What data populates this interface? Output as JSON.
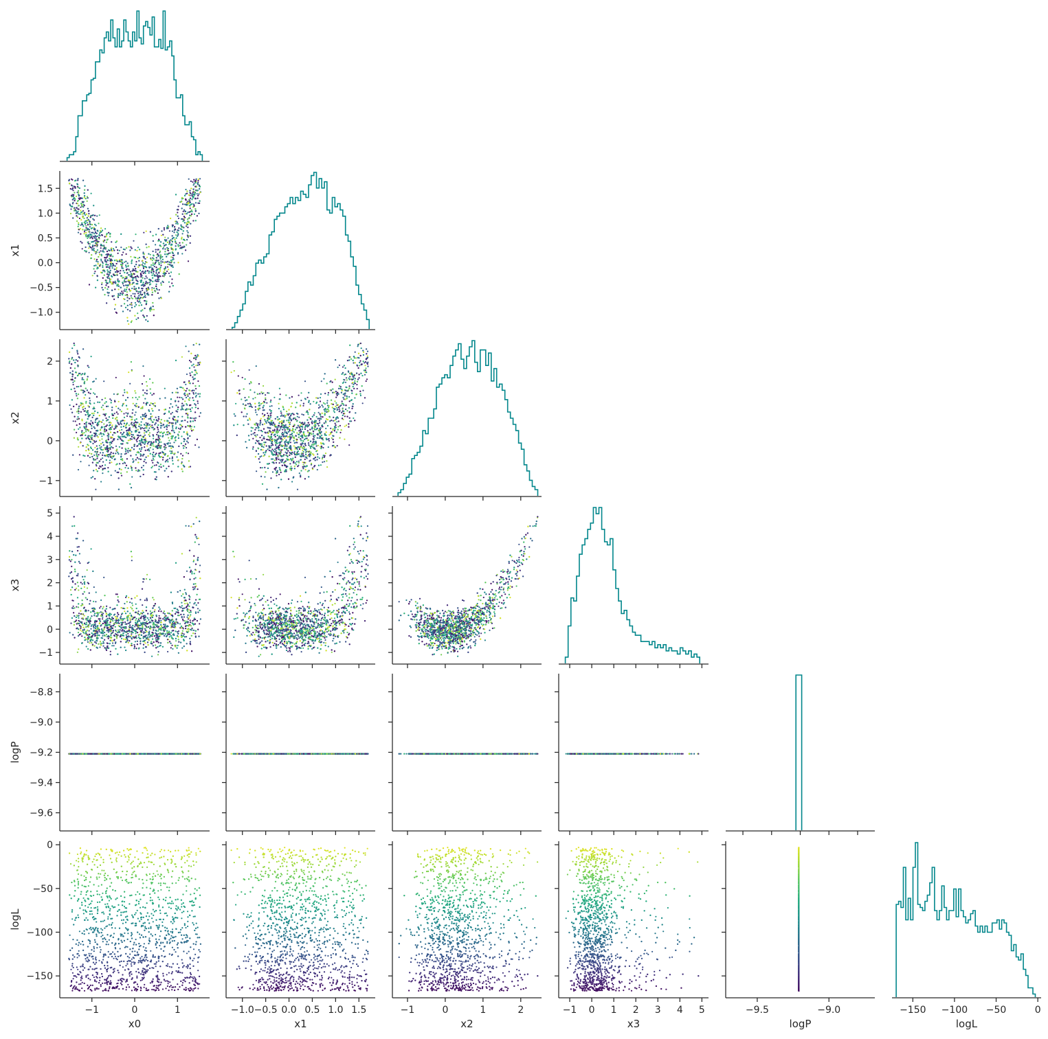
{
  "chart_data": {
    "type": "scatter",
    "layout": "corner-pairplot",
    "variables": [
      "x0",
      "x1",
      "x2",
      "x3",
      "logP",
      "logL"
    ],
    "axis_labels": {
      "x0": "x0",
      "x1": "x1",
      "x2": "x2",
      "x3": "x3",
      "logP": "logP",
      "logL": "logL"
    },
    "ranges": {
      "x0": [
        -1.75,
        1.75
      ],
      "x1": [
        -1.35,
        1.85
      ],
      "x2": [
        -1.4,
        2.55
      ],
      "x3": [
        -1.5,
        5.3
      ],
      "logP": [
        -9.72,
        -8.68
      ],
      "logL": [
        -175,
        4
      ]
    },
    "ticks": {
      "x0": [
        -1,
        0,
        1
      ],
      "x1": [
        -1.0,
        -0.5,
        0.0,
        0.5,
        1.0,
        1.5
      ],
      "x2": [
        -1,
        0,
        1,
        2
      ],
      "x3": [
        -1,
        0,
        1,
        2,
        3,
        4,
        5
      ],
      "logP": [
        -9.6,
        -9.4,
        -9.2,
        -9.0,
        -8.8
      ],
      "logL": [
        -150,
        -100,
        -50,
        0
      ]
    },
    "tick_labels": {
      "x0": [
        "−1",
        "0",
        "1"
      ],
      "x1": [
        "−1.0",
        "−0.5",
        "0.0",
        "0.5",
        "1.0",
        "1.5"
      ],
      "x2": [
        "−1",
        "0",
        "1",
        "2"
      ],
      "x3": [
        "−1",
        "0",
        "1",
        "2",
        "3",
        "4",
        "5"
      ],
      "logP": [
        "−9.6",
        "−9.4",
        "−9.2",
        "−9.0",
        "−8.8"
      ],
      "logL": [
        "−150",
        "−100",
        "−50",
        "0"
      ]
    },
    "bottom_ticks": {
      "logP": [
        -9.5,
        -9.0
      ],
      "logL": [
        -150,
        -100,
        -50,
        0
      ]
    },
    "bottom_tick_labels": {
      "logP": [
        "−9.5",
        "−9.0"
      ],
      "logL": [
        "−150",
        "−100",
        "−50",
        "0"
      ]
    },
    "logP_constant": -9.21,
    "histograms": {
      "x0": {
        "range": [
          -1.58,
          1.58
        ],
        "counts": [
          2,
          4,
          4,
          6,
          16,
          30,
          30,
          40,
          40,
          44,
          45,
          54,
          55,
          66,
          66,
          74,
          72,
          82,
          86,
          80,
          94,
          82,
          76,
          88,
          76,
          80,
          94,
          86,
          80,
          76,
          86,
          80,
          100,
          82,
          78,
          90,
          93,
          89,
          84,
          96,
          76,
          76,
          81,
          75,
          100,
          74,
          76,
          80,
          70,
          54,
          42,
          42,
          44,
          30,
          24,
          24,
          26,
          16,
          14,
          4,
          6,
          4
        ]
      },
      "x1": {
        "range": [
          -1.22,
          1.72
        ],
        "counts": [
          1,
          4,
          8,
          12,
          16,
          24,
          30,
          28,
          34,
          42,
          44,
          42,
          46,
          48,
          60,
          62,
          70,
          72,
          74,
          74,
          78,
          80,
          84,
          80,
          84,
          82,
          88,
          86,
          84,
          92,
          98,
          100,
          90,
          96,
          90,
          94,
          76,
          74,
          84,
          78,
          80,
          76,
          72,
          60,
          56,
          46,
          40,
          28,
          22,
          16,
          12,
          6
        ]
      },
      "x2": {
        "range": [
          -1.25,
          2.45
        ],
        "counts": [
          2,
          4,
          8,
          12,
          14,
          24,
          26,
          28,
          32,
          42,
          40,
          50,
          50,
          56,
          70,
          72,
          76,
          78,
          76,
          84,
          90,
          94,
          98,
          88,
          82,
          90,
          96,
          100,
          86,
          80,
          94,
          94,
          84,
          92,
          74,
          82,
          70,
          72,
          68,
          62,
          54,
          50,
          46,
          42,
          34,
          30,
          20,
          16,
          10,
          6,
          4
        ]
      },
      "x3": {
        "range": [
          -1.2,
          4.9
        ],
        "counts": [
          4,
          24,
          42,
          40,
          56,
          70,
          76,
          80,
          86,
          90,
          100,
          96,
          100,
          86,
          78,
          76,
          80,
          60,
          48,
          40,
          32,
          34,
          28,
          24,
          20,
          18,
          18,
          14,
          14,
          14,
          12,
          14,
          10,
          12,
          10,
          12,
          8,
          10,
          8,
          8,
          6,
          10,
          8,
          6,
          8,
          4,
          6,
          4
        ]
      },
      "logP": {
        "range": [
          -9.23,
          -9.19
        ],
        "counts": [
          100
        ]
      },
      "logL": {
        "range": [
          -170,
          -3
        ],
        "counts": [
          60,
          62,
          58,
          84,
          50,
          64,
          50,
          84,
          100,
          60,
          58,
          56,
          62,
          66,
          74,
          84,
          56,
          50,
          56,
          72,
          58,
          50,
          56,
          56,
          70,
          52,
          70,
          56,
          52,
          48,
          50,
          54,
          56,
          46,
          42,
          46,
          42,
          46,
          42,
          42,
          48,
          48,
          50,
          44,
          50,
          48,
          42,
          40,
          30,
          34,
          26,
          24,
          28,
          18,
          14,
          6,
          6,
          2
        ]
      }
    },
    "scatter": {
      "n_points": 2200,
      "colormap": "viridis",
      "color_variable": "logL",
      "marker_size": 2
    },
    "colors": {
      "histogram": "#00868b",
      "axes": "#262626",
      "background": "#ffffff",
      "viridis": [
        "#440154",
        "#472c7a",
        "#3b518b",
        "#2c718e",
        "#21908d",
        "#27ad81",
        "#5cc863",
        "#aadc32",
        "#fde725"
      ]
    },
    "grid": false,
    "legend": "none"
  }
}
